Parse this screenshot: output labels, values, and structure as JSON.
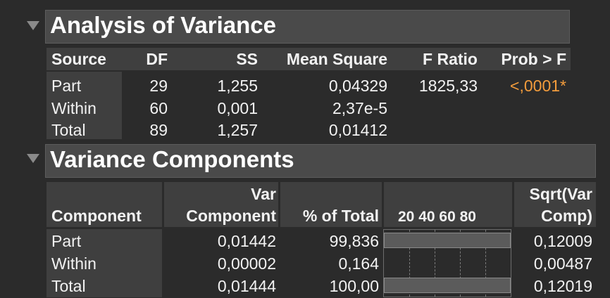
{
  "anova": {
    "title": "Analysis of Variance",
    "headers": [
      "Source",
      "DF",
      "SS",
      "Mean Square",
      "F Ratio",
      "Prob > F"
    ],
    "rows": [
      {
        "source": "Part",
        "df": "29",
        "ss": "1,255",
        "ms": "0,04329",
        "f": "1825,33",
        "p": "<,0001*"
      },
      {
        "source": "Within",
        "df": "60",
        "ss": "0,001",
        "ms": "2,37e-5",
        "f": "",
        "p": ""
      },
      {
        "source": "Total",
        "df": "89",
        "ss": "1,257",
        "ms": "0,01412",
        "f": "",
        "p": ""
      }
    ]
  },
  "variance": {
    "title": "Variance Components",
    "headers": {
      "component": "Component",
      "var_line1": "Var",
      "var_line2": "Component",
      "pct": "% of Total",
      "axis": "20 40 60 80",
      "sqrt_line1": "Sqrt(Var",
      "sqrt_line2": "Comp)"
    },
    "rows": [
      {
        "name": "Part",
        "var": "0,01442",
        "pct": "99,836",
        "pct_value": 99.836,
        "sqrt": "0,12009"
      },
      {
        "name": "Within",
        "var": "0,00002",
        "pct": "0,164",
        "pct_value": 0.164,
        "sqrt": "0,00487"
      },
      {
        "name": "Total",
        "var": "0,01444",
        "pct": "100,00",
        "pct_value": 100.0,
        "sqrt": "0,12019"
      }
    ]
  },
  "colors": {
    "accent_orange": "#f39c3c",
    "header_bg": "#4a4a4a",
    "cell_bg": "#3f3f3f",
    "page_bg": "#2b2b2b"
  }
}
